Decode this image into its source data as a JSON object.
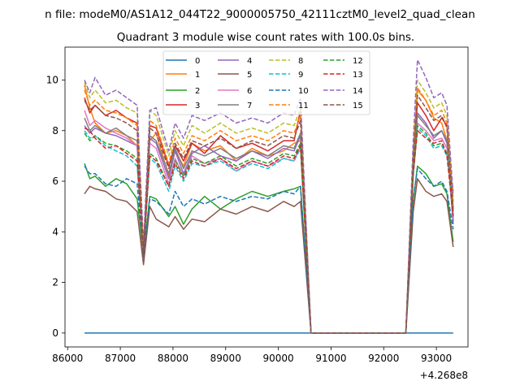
{
  "chart_data": {
    "type": "line",
    "suptitle": "n file: modeM0/AS1A12_044T22_9000005750_42111cztM0_level2_quad_clean",
    "title": "Quadrant 3 module wise count rates with 100.0s bins.",
    "xlabel": "",
    "ylabel": "",
    "x_offset_label": "+4.268e8",
    "xlim": [
      85950,
      93600
    ],
    "ylim": [
      -0.55,
      11.3
    ],
    "xticks": [
      86000,
      87000,
      88000,
      89000,
      90000,
      91000,
      92000,
      93000
    ],
    "xtick_labels": [
      "86000",
      "87000",
      "88000",
      "89000",
      "90000",
      "91000",
      "92000",
      "93000"
    ],
    "yticks": [
      0,
      2,
      4,
      6,
      8,
      10
    ],
    "ytick_labels": [
      "0",
      "2",
      "4",
      "6",
      "8",
      "10"
    ],
    "grid": false,
    "legend_position": "top-center",
    "legend_columns": 4,
    "colors": [
      "#1f77b4",
      "#ff7f0e",
      "#2ca02c",
      "#d62728",
      "#9467bd",
      "#8c564b",
      "#e377c2",
      "#7f7f7f",
      "#bcbd22",
      "#17becf",
      "#1f77b4",
      "#ff7f0e",
      "#2ca02c",
      "#d62728",
      "#9467bd",
      "#8c564b"
    ],
    "series": [
      {
        "name": "0",
        "style": "solid",
        "x": [
          86320,
          93320
        ],
        "values": [
          0,
          0
        ]
      },
      {
        "name": "1",
        "style": "solid",
        "x": [
          86320,
          86420,
          86520,
          86720,
          86920,
          87120,
          87320,
          87440,
          87560,
          87680,
          87920,
          88040,
          88200,
          88360,
          88600,
          88900,
          89200,
          89500,
          89800,
          90100,
          90300,
          90420,
          90620,
          92420,
          92560,
          92640,
          92800,
          92950,
          93100,
          93200,
          93320
        ],
        "values": [
          9.8,
          8.9,
          8.3,
          7.9,
          8.0,
          7.8,
          7.4,
          3.3,
          7.6,
          7.9,
          6.2,
          7.2,
          6.6,
          7.5,
          7.2,
          7.4,
          6.8,
          7.3,
          7.0,
          7.2,
          7.5,
          7.6,
          0,
          0,
          6.5,
          9.6,
          9.2,
          8.5,
          8.3,
          7.6,
          5.6
        ]
      },
      {
        "name": "2",
        "style": "solid",
        "x": [
          86320,
          86420,
          86520,
          86720,
          86920,
          87120,
          87320,
          87440,
          87560,
          87680,
          87920,
          88040,
          88200,
          88360,
          88600,
          88900,
          89200,
          89500,
          89800,
          90100,
          90300,
          90420,
          90620,
          92420,
          92560,
          92640,
          92800,
          92950,
          93100,
          93200,
          93320
        ],
        "values": [
          6.7,
          6.1,
          6.2,
          5.8,
          6.1,
          5.9,
          5.3,
          3.1,
          5.4,
          5.3,
          4.6,
          5.0,
          4.3,
          4.9,
          5.4,
          4.9,
          5.3,
          5.6,
          5.4,
          5.6,
          5.7,
          5.8,
          0,
          0,
          5.2,
          6.6,
          6.3,
          5.8,
          5.9,
          5.5,
          3.6
        ]
      },
      {
        "name": "3",
        "style": "solid",
        "x": [
          86320,
          86420,
          86520,
          86720,
          86920,
          87120,
          87320,
          87440,
          87560,
          87680,
          87920,
          88040,
          88200,
          88360,
          88600,
          88900,
          89200,
          89500,
          89800,
          90100,
          90300,
          90420,
          90620,
          92420,
          92560,
          92640,
          92800,
          92950,
          93100,
          93200,
          93320
        ],
        "values": [
          9.3,
          8.7,
          9.0,
          8.6,
          8.8,
          8.5,
          8.3,
          3.0,
          8.2,
          8.1,
          6.6,
          7.4,
          6.8,
          7.5,
          7.1,
          7.8,
          7.3,
          7.5,
          7.2,
          7.6,
          7.6,
          8.8,
          0,
          0,
          6.9,
          9.1,
          8.6,
          8.0,
          8.5,
          8.2,
          4.4
        ]
      },
      {
        "name": "4",
        "style": "solid",
        "x": [
          86320,
          86420,
          86520,
          86720,
          86920,
          87120,
          87320,
          87440,
          87560,
          87680,
          87920,
          88040,
          88200,
          88360,
          88600,
          88900,
          89200,
          89500,
          89800,
          90100,
          90300,
          90420,
          90620,
          92420,
          92560,
          92640,
          92800,
          92950,
          93100,
          93200,
          93320
        ],
        "values": [
          8.2,
          7.9,
          8.1,
          7.9,
          7.8,
          7.6,
          7.4,
          3.0,
          7.7,
          7.5,
          6.1,
          7.2,
          6.3,
          7.1,
          7.4,
          7.0,
          6.8,
          7.2,
          6.9,
          7.3,
          7.2,
          7.8,
          0,
          0,
          6.6,
          8.7,
          8.3,
          7.7,
          8.0,
          7.5,
          4.3
        ]
      },
      {
        "name": "5",
        "style": "solid",
        "x": [
          86320,
          86420,
          86520,
          86720,
          86920,
          87120,
          87320,
          87440,
          87560,
          87680,
          87920,
          88040,
          88200,
          88360,
          88600,
          88900,
          89200,
          89500,
          89800,
          90100,
          90300,
          90420,
          90620,
          92420,
          92560,
          92640,
          92800,
          92950,
          93100,
          93200,
          93320
        ],
        "values": [
          5.5,
          5.8,
          5.7,
          5.6,
          5.3,
          5.2,
          4.8,
          2.7,
          5.0,
          4.5,
          4.2,
          4.6,
          4.1,
          4.5,
          4.4,
          4.9,
          4.7,
          5.0,
          4.8,
          5.2,
          5.0,
          5.2,
          0,
          0,
          4.8,
          6.1,
          5.6,
          5.4,
          5.5,
          5.2,
          3.4
        ]
      },
      {
        "name": "6",
        "style": "solid",
        "x": [
          86320,
          86420,
          86520,
          86720,
          86920,
          87120,
          87320,
          87440,
          87560,
          87680,
          87920,
          88040,
          88200,
          88360,
          88600,
          88900,
          89200,
          89500,
          89800,
          90100,
          90300,
          90420,
          90620,
          92420,
          92560,
          92640,
          92800,
          92950,
          93100,
          93200,
          93320
        ],
        "values": [
          8.8,
          8.2,
          8.4,
          8.1,
          7.9,
          7.7,
          7.4,
          3.2,
          7.5,
          7.3,
          5.9,
          6.9,
          6.2,
          7.0,
          6.7,
          6.9,
          6.4,
          6.8,
          6.6,
          6.9,
          6.8,
          7.4,
          0,
          0,
          6.4,
          8.3,
          8.0,
          7.6,
          7.7,
          7.3,
          4.7
        ]
      },
      {
        "name": "7",
        "style": "solid",
        "x": [
          86320,
          86420,
          86520,
          86720,
          86920,
          87120,
          87320,
          87440,
          87560,
          87680,
          87920,
          88040,
          88200,
          88360,
          88600,
          88900,
          89200,
          89500,
          89800,
          90100,
          90300,
          90420,
          90620,
          92420,
          92560,
          92640,
          92800,
          92950,
          93100,
          93200,
          93320
        ],
        "values": [
          8.5,
          8.0,
          8.2,
          7.9,
          8.1,
          7.8,
          7.6,
          3.1,
          7.8,
          7.6,
          6.3,
          7.3,
          6.5,
          7.2,
          7.0,
          7.3,
          6.9,
          7.2,
          7.0,
          7.4,
          7.3,
          7.9,
          0,
          0,
          6.6,
          8.6,
          8.2,
          7.8,
          8.0,
          7.6,
          4.6
        ]
      },
      {
        "name": "8",
        "style": "dashed",
        "x": [
          86320,
          86420,
          86520,
          86720,
          86920,
          87120,
          87320,
          87440,
          87560,
          87680,
          87920,
          88040,
          88200,
          88360,
          88600,
          88900,
          89200,
          89500,
          89800,
          90100,
          90300,
          90420,
          90620,
          92420,
          92560,
          92640,
          92800,
          92950,
          93100,
          93200,
          93320
        ],
        "values": [
          9.9,
          9.3,
          9.6,
          9.1,
          9.2,
          8.9,
          8.7,
          3.4,
          8.8,
          8.6,
          7.0,
          8.0,
          7.4,
          8.2,
          7.9,
          8.3,
          7.9,
          8.1,
          7.9,
          8.3,
          8.2,
          8.9,
          0,
          0,
          7.3,
          10.0,
          9.5,
          8.9,
          9.1,
          8.6,
          5.2
        ]
      },
      {
        "name": "9",
        "style": "dashed",
        "x": [
          86320,
          86420,
          86520,
          86720,
          86920,
          87120,
          87320,
          87440,
          87560,
          87680,
          87920,
          88040,
          88200,
          88360,
          88600,
          88900,
          89200,
          89500,
          89800,
          90100,
          90300,
          90420,
          90620,
          92420,
          92560,
          92640,
          92800,
          92950,
          93100,
          93200,
          93320
        ],
        "values": [
          8.0,
          7.7,
          7.8,
          7.4,
          7.2,
          7.0,
          6.6,
          3.2,
          6.9,
          6.7,
          5.6,
          6.6,
          6.0,
          6.7,
          6.6,
          6.8,
          6.4,
          6.7,
          6.5,
          6.9,
          6.8,
          7.3,
          0,
          0,
          6.2,
          8.1,
          7.8,
          7.3,
          7.4,
          7.0,
          4.9
        ]
      },
      {
        "name": "10",
        "style": "dashed",
        "x": [
          86320,
          86420,
          86520,
          86720,
          86920,
          87120,
          87320,
          87440,
          87560,
          87680,
          87920,
          88040,
          88200,
          88360,
          88600,
          88900,
          89200,
          89500,
          89800,
          90100,
          90300,
          90420,
          90620,
          92420,
          92560,
          92640,
          92800,
          92950,
          93100,
          93200,
          93320
        ],
        "values": [
          6.6,
          6.3,
          6.3,
          5.9,
          5.8,
          6.1,
          5.9,
          3.0,
          5.3,
          5.2,
          4.7,
          5.6,
          5.0,
          5.3,
          5.1,
          5.4,
          5.2,
          5.4,
          5.3,
          5.6,
          5.5,
          5.8,
          0,
          0,
          5.3,
          6.5,
          6.1,
          5.8,
          6.0,
          5.6,
          4.1
        ]
      },
      {
        "name": "11",
        "style": "dashed",
        "x": [
          86320,
          86420,
          86520,
          86720,
          86920,
          87120,
          87320,
          87440,
          87560,
          87680,
          87920,
          88040,
          88200,
          88360,
          88600,
          88900,
          89200,
          89500,
          89800,
          90100,
          90300,
          90420,
          90620,
          92420,
          92560,
          92640,
          92800,
          92950,
          93100,
          93200,
          93320
        ],
        "values": [
          9.6,
          9.0,
          9.2,
          8.8,
          8.7,
          8.5,
          8.2,
          3.3,
          8.4,
          8.2,
          6.7,
          7.7,
          7.1,
          7.8,
          7.6,
          8.0,
          7.6,
          7.8,
          7.6,
          8.0,
          7.9,
          8.6,
          0,
          0,
          7.0,
          9.7,
          9.2,
          8.6,
          8.8,
          8.3,
          5.0
        ]
      },
      {
        "name": "12",
        "style": "dashed",
        "x": [
          86320,
          86420,
          86520,
          86720,
          86920,
          87120,
          87320,
          87440,
          87560,
          87680,
          87920,
          88040,
          88200,
          88360,
          88600,
          88900,
          89200,
          89500,
          89800,
          90100,
          90300,
          90420,
          90620,
          92420,
          92560,
          92640,
          92800,
          92950,
          93100,
          93200,
          93320
        ],
        "values": [
          7.9,
          7.6,
          7.8,
          7.5,
          7.4,
          7.2,
          6.9,
          3.1,
          7.1,
          6.9,
          5.8,
          6.8,
          6.2,
          6.9,
          6.7,
          7.0,
          6.6,
          6.9,
          6.7,
          7.1,
          7.0,
          7.5,
          0,
          0,
          6.3,
          8.2,
          7.9,
          7.4,
          7.5,
          7.1,
          4.8
        ]
      },
      {
        "name": "13",
        "style": "dashed",
        "x": [
          86320,
          86420,
          86520,
          86720,
          86920,
          87120,
          87320,
          87440,
          87560,
          87680,
          87920,
          88040,
          88200,
          88360,
          88600,
          88900,
          89200,
          89500,
          89800,
          90100,
          90300,
          90420,
          90620,
          92420,
          92560,
          92640,
          92800,
          92950,
          93100,
          93200,
          93320
        ],
        "values": [
          8.1,
          8.0,
          7.7,
          7.3,
          7.4,
          7.1,
          6.8,
          3.1,
          7.0,
          6.8,
          5.8,
          6.7,
          6.1,
          6.8,
          6.6,
          6.9,
          6.5,
          6.8,
          6.6,
          7.0,
          6.9,
          7.4,
          0,
          0,
          6.3,
          8.0,
          7.7,
          7.5,
          7.6,
          7.0,
          4.6
        ]
      },
      {
        "name": "14",
        "style": "dashed",
        "x": [
          86320,
          86420,
          86520,
          86720,
          86920,
          87120,
          87320,
          87440,
          87560,
          87680,
          87920,
          88040,
          88200,
          88360,
          88600,
          88900,
          89200,
          89500,
          89800,
          90100,
          90300,
          90420,
          90620,
          92420,
          92560,
          92640,
          92800,
          92950,
          93100,
          93200,
          93320
        ],
        "values": [
          10.0,
          9.5,
          10.1,
          9.4,
          9.6,
          9.3,
          9.0,
          3.5,
          8.8,
          8.9,
          7.2,
          8.3,
          7.7,
          8.6,
          8.4,
          8.7,
          8.3,
          8.5,
          8.3,
          8.7,
          8.6,
          9.3,
          0,
          0,
          7.6,
          10.8,
          10.1,
          9.3,
          9.5,
          9.0,
          5.4
        ]
      },
      {
        "name": "15",
        "style": "dashed",
        "x": [
          86320,
          86420,
          86520,
          86720,
          86920,
          87120,
          87320,
          87440,
          87560,
          87680,
          87920,
          88040,
          88200,
          88360,
          88600,
          88900,
          89200,
          89500,
          89800,
          90100,
          90300,
          90420,
          90620,
          92420,
          92560,
          92640,
          92800,
          92950,
          93100,
          93200,
          93320
        ],
        "values": [
          9.2,
          8.8,
          9.0,
          8.6,
          8.5,
          8.3,
          8.0,
          3.2,
          8.1,
          7.9,
          6.5,
          7.5,
          6.9,
          7.6,
          7.4,
          7.7,
          7.3,
          7.6,
          7.4,
          7.8,
          7.7,
          8.4,
          0,
          0,
          6.8,
          9.4,
          8.9,
          8.4,
          8.6,
          8.1,
          4.9
        ]
      }
    ]
  }
}
